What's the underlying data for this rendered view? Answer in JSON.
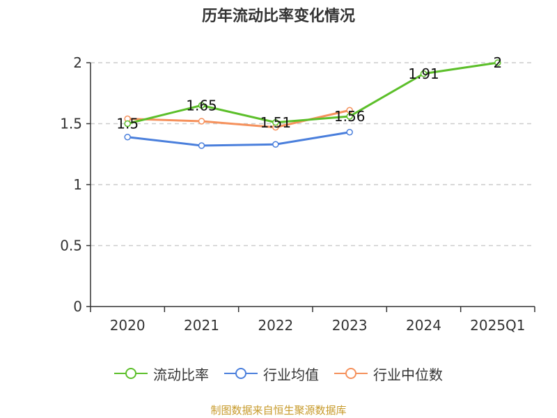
{
  "chart_data": {
    "type": "line",
    "title": "历年流动比率变化情况",
    "categories": [
      "2020",
      "2021",
      "2022",
      "2023",
      "2024",
      "2025Q1"
    ],
    "ylim": [
      0,
      2
    ],
    "yticks": [
      0,
      0.5,
      1,
      1.5,
      2
    ],
    "ytick_labels": [
      "0",
      "0.5",
      "1",
      "1.5",
      "2"
    ],
    "grid": true,
    "legend_position": "bottom",
    "series": [
      {
        "name": "流动比率",
        "color": "#5cbf2a",
        "values": [
          1.5,
          1.65,
          1.51,
          1.56,
          1.91,
          2
        ],
        "labels": [
          "1.5",
          "1.65",
          "1.51",
          "1.56",
          "1.91",
          "2"
        ]
      },
      {
        "name": "行业均值",
        "color": "#4a7fdc",
        "values": [
          1.39,
          1.32,
          1.33,
          1.43,
          null,
          null
        ],
        "labels": []
      },
      {
        "name": "行业中位数",
        "color": "#f5915c",
        "values": [
          1.54,
          1.52,
          1.47,
          1.61,
          null,
          null
        ],
        "labels": []
      }
    ]
  },
  "footer": {
    "source": "制图数据来自恒生聚源数据库"
  }
}
